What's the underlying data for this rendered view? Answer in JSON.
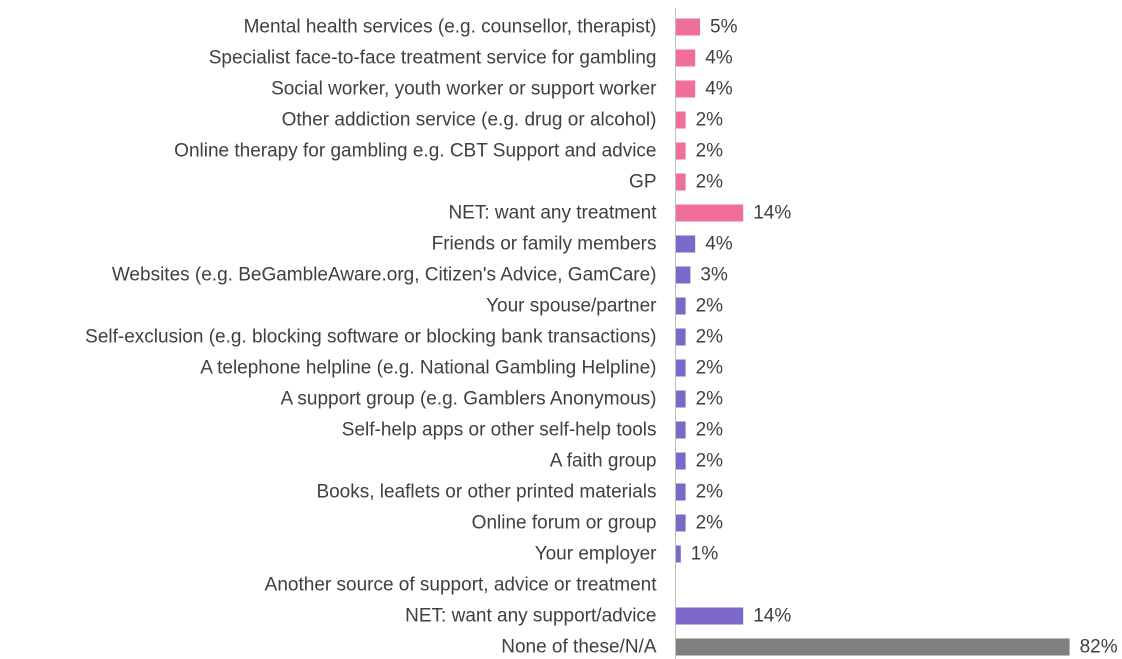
{
  "chart_data": {
    "type": "bar",
    "orientation": "horizontal",
    "title": "",
    "xlabel": "",
    "ylabel": "",
    "xlim": [
      0,
      100
    ],
    "grid": false,
    "legend": "none",
    "categories": [
      "Mental health services (e.g. counsellor, therapist)",
      "Specialist face-to-face treatment service for gambling",
      "Social worker, youth worker or support worker",
      "Other addiction service (e.g. drug or alcohol)",
      "Online therapy for gambling e.g. CBT Support and advice",
      "GP",
      "NET: want any treatment",
      "Friends or family members",
      "Websites (e.g. BeGambleAware.org, Citizen's Advice, GamCare)",
      "Your spouse/partner",
      "Self-exclusion (e.g. blocking software or blocking bank transactions)",
      "A telephone helpline (e.g.  National Gambling Helpline)",
      "A support group (e.g. Gamblers Anonymous)",
      "Self-help apps or other self-help tools",
      "A faith group",
      "Books, leaflets or other printed materials",
      "Online forum or group",
      "Your employer",
      "Another source of support, advice or treatment",
      "NET: want any support/advice",
      "None of these/N/A"
    ],
    "values": [
      5,
      4,
      4,
      2,
      2,
      2,
      14,
      4,
      3,
      2,
      2,
      2,
      2,
      2,
      2,
      2,
      2,
      1,
      null,
      14,
      82
    ],
    "value_labels": [
      "5%",
      "4%",
      "4%",
      "2%",
      "2%",
      "2%",
      "14%",
      "4%",
      "3%",
      "2%",
      "2%",
      "2%",
      "2%",
      "2%",
      "2%",
      "2%",
      "2%",
      "1%",
      "",
      "14%",
      "82%"
    ],
    "groups": [
      "treatment",
      "treatment",
      "treatment",
      "treatment",
      "treatment",
      "treatment",
      "treatment",
      "support",
      "support",
      "support",
      "support",
      "support",
      "support",
      "support",
      "support",
      "support",
      "support",
      "support",
      "support",
      "support",
      "none"
    ],
    "colors": {
      "treatment": "#F06E9C",
      "support": "#7B68C8",
      "none": "#7F7F7F",
      "axis": "#BFBFBF",
      "text": "#404040"
    }
  }
}
